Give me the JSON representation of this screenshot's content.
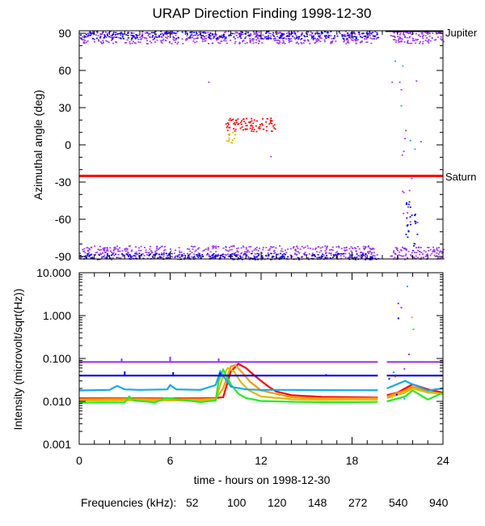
{
  "title": "URAP Direction Finding  1998-12-30",
  "chart_data": [
    {
      "type": "scatter",
      "panel": "azimuth",
      "ylabel": "Azimuthal angle (deg)",
      "xlim": [
        0,
        24
      ],
      "ylim": [
        -92,
        92
      ],
      "yticks": [
        90,
        60,
        30,
        0,
        -30,
        -60,
        -90
      ],
      "yticklabels": [
        "90",
        "60",
        "30",
        "0",
        "-30",
        "-60",
        "-90"
      ],
      "reference_lines": [
        {
          "label": "Jupiter",
          "y": 91.5,
          "x_range": [
            20.2,
            24
          ],
          "color": "#000000"
        },
        {
          "label": "Saturn",
          "y": -25,
          "x_range": [
            0,
            24
          ],
          "color": "#ff0000"
        }
      ],
      "clusters": [
        {
          "freq": "940",
          "x_range": [
            0,
            19.7
          ],
          "y_range": [
            82,
            92
          ],
          "count": 520
        },
        {
          "freq": "540",
          "x_range": [
            0,
            19.7
          ],
          "y_range": [
            86,
            92
          ],
          "count": 260
        },
        {
          "freq": "940",
          "x_range": [
            0,
            19.7
          ],
          "y_range": [
            -92,
            -81
          ],
          "count": 520
        },
        {
          "freq": "540",
          "x_range": [
            0,
            19.7
          ],
          "y_range": [
            -92,
            -87
          ],
          "count": 260
        },
        {
          "freq": "940",
          "x_range": [
            20.5,
            24
          ],
          "y_range": [
            82,
            92
          ],
          "count": 110
        },
        {
          "freq": "940",
          "x_range": [
            20.5,
            24
          ],
          "y_range": [
            -92,
            -82
          ],
          "count": 110
        },
        {
          "freq": "52",
          "x_range": [
            9.6,
            12.9
          ],
          "y_range": [
            11,
            22
          ],
          "count": 90
        },
        {
          "freq": "120",
          "x_range": [
            9.6,
            10.3
          ],
          "y_range": [
            2,
            12
          ],
          "count": 14
        },
        {
          "freq": "540",
          "x_range": [
            21.5,
            22.3
          ],
          "y_range": [
            -90,
            -40
          ],
          "count": 25
        },
        {
          "freq": "940",
          "x_range": [
            21.2,
            22.4
          ],
          "y_range": [
            -70,
            10
          ],
          "count": 12
        }
      ],
      "scattered_points": [
        {
          "freq": "940",
          "x": 8.5,
          "y": 51
        },
        {
          "freq": "940",
          "x": 12.6,
          "y": -9
        },
        {
          "freq": "940",
          "x": 20.6,
          "y": 51
        },
        {
          "freq": "940",
          "x": 21.1,
          "y": 51
        },
        {
          "freq": "940",
          "x": 21.2,
          "y": 45
        },
        {
          "freq": "272",
          "x": 20.8,
          "y": 68
        },
        {
          "freq": "272",
          "x": 21.3,
          "y": 64
        },
        {
          "freq": "272",
          "x": 21.2,
          "y": 32
        },
        {
          "freq": "272",
          "x": 21.8,
          "y": 4
        },
        {
          "freq": "272",
          "x": 22.1,
          "y": -3
        },
        {
          "freq": "940",
          "x": 21.5,
          "y": 12
        },
        {
          "freq": "940",
          "x": 22.2,
          "y": 52
        },
        {
          "freq": "940",
          "x": 22.5,
          "y": 3
        }
      ]
    },
    {
      "type": "line",
      "panel": "intensity",
      "ylabel": "Intensity (microvolt/sqrt(Hz))",
      "xlabel": "time - hours on 1998-12-30",
      "xlim": [
        0,
        24
      ],
      "xticks": [
        0,
        6,
        12,
        18,
        24
      ],
      "xticklabels": [
        "0",
        "6",
        "12",
        "18",
        "24"
      ],
      "ylim": [
        0.001,
        10
      ],
      "yscale": "log",
      "yticks": [
        10,
        1,
        0.1,
        0.01,
        0.001
      ],
      "yticklabels": [
        "10.000",
        "1.000",
        "0.100",
        "0.010",
        "0.001"
      ],
      "gap": [
        19.7,
        20.3
      ],
      "series": [
        {
          "freq": "52",
          "x": [
            0,
            2,
            4,
            6,
            8,
            9,
            9.5,
            10,
            10.5,
            11,
            11.5,
            12,
            12.5,
            13,
            14,
            16,
            18,
            19.7,
            20.3,
            21,
            21.5,
            22,
            23,
            24
          ],
          "y": [
            0.0118,
            0.0118,
            0.0118,
            0.0117,
            0.0118,
            0.012,
            0.0125,
            0.05,
            0.075,
            0.06,
            0.042,
            0.03,
            0.022,
            0.017,
            0.014,
            0.0127,
            0.0125,
            0.0122,
            0.014,
            0.016,
            0.02,
            0.025,
            0.019,
            0.016
          ]
        },
        {
          "freq": "100",
          "x": [
            0,
            3,
            6,
            8,
            9,
            9.5,
            10,
            10.3,
            10.8,
            11.3,
            12,
            14,
            16,
            18,
            19.7,
            20.3,
            21.5,
            22,
            23,
            24
          ],
          "y": [
            0.0112,
            0.0114,
            0.0112,
            0.0112,
            0.0116,
            0.02,
            0.065,
            0.07,
            0.045,
            0.028,
            0.018,
            0.0125,
            0.0118,
            0.0118,
            0.0118,
            0.013,
            0.018,
            0.022,
            0.017,
            0.015
          ]
        },
        {
          "freq": "120",
          "x": [
            0,
            3,
            6,
            8,
            9,
            9.5,
            9.8,
            10.2,
            10.7,
            11.2,
            12,
            14,
            16,
            18,
            19.7,
            20.3,
            21.5,
            22,
            23,
            24
          ],
          "y": [
            0.0105,
            0.0106,
            0.0105,
            0.0106,
            0.0112,
            0.04,
            0.06,
            0.05,
            0.027,
            0.018,
            0.013,
            0.0112,
            0.0109,
            0.011,
            0.011,
            0.012,
            0.016,
            0.02,
            0.016,
            0.015
          ]
        },
        {
          "freq": "148",
          "x": [
            0,
            1.5,
            3,
            3.3,
            3.6,
            5,
            5.7,
            8,
            9,
            9.2,
            9.5,
            10,
            10.5,
            11,
            12,
            14,
            16,
            18,
            19.7,
            20.3,
            21.5,
            22,
            23,
            24
          ],
          "y": [
            0.0093,
            0.0094,
            0.0095,
            0.013,
            0.0105,
            0.0095,
            0.012,
            0.0096,
            0.0105,
            0.03,
            0.055,
            0.025,
            0.015,
            0.012,
            0.0102,
            0.0098,
            0.0096,
            0.0096,
            0.0097,
            0.01,
            0.013,
            0.018,
            0.011,
            0.016
          ]
        },
        {
          "freq": "272",
          "x": [
            0,
            2,
            2.5,
            3,
            4,
            5.8,
            6,
            6.4,
            8,
            9,
            9.3,
            10,
            11,
            12,
            14,
            16,
            18,
            19.7,
            20.3,
            21.5,
            22,
            23,
            24
          ],
          "y": [
            0.018,
            0.0185,
            0.023,
            0.019,
            0.0185,
            0.019,
            0.024,
            0.019,
            0.0185,
            0.024,
            0.05,
            0.022,
            0.019,
            0.0185,
            0.0185,
            0.0183,
            0.0182,
            0.0182,
            0.02,
            0.03,
            0.025,
            0.018,
            0.02
          ]
        },
        {
          "freq": "540",
          "x": [
            0,
            19.7,
            20.3,
            24
          ],
          "y": [
            0.04,
            0.04,
            0.04,
            0.04
          ]
        },
        {
          "freq": "940",
          "x": [
            0,
            19.7,
            20.3,
            24
          ],
          "y": [
            0.083,
            0.083,
            0.083,
            0.083
          ]
        }
      ],
      "scattered_points": [
        {
          "freq": "272",
          "x": 21.6,
          "y": 5.0
        },
        {
          "freq": "940",
          "x": 21.0,
          "y": 2.0
        },
        {
          "freq": "940",
          "x": 21.2,
          "y": 1.6
        },
        {
          "freq": "540",
          "x": 21.0,
          "y": 0.9
        },
        {
          "freq": "148",
          "x": 22.0,
          "y": 0.5
        },
        {
          "freq": "120",
          "x": 21.9,
          "y": 0.95
        },
        {
          "freq": "940",
          "x": 21.7,
          "y": 0.13
        },
        {
          "freq": "52",
          "x": 20.8,
          "y": 0.04
        },
        {
          "freq": "272",
          "x": 20.7,
          "y": 0.05
        },
        {
          "freq": "540",
          "x": 20.4,
          "y": 0.035
        },
        {
          "freq": "940",
          "x": 21.4,
          "y": 0.06
        },
        {
          "freq": "272",
          "x": 21.4,
          "y": 0.012
        },
        {
          "freq": "540",
          "x": 20.9,
          "y": 0.015
        },
        {
          "freq": "120",
          "x": 20.6,
          "y": 0.013
        }
      ],
      "spikes": [
        {
          "freq": "940",
          "x": 2.8,
          "y": 0.1
        },
        {
          "freq": "940",
          "x": 6.0,
          "y": 0.11
        },
        {
          "freq": "940",
          "x": 9.2,
          "y": 0.1
        },
        {
          "freq": "540",
          "x": 3.0,
          "y": 0.05
        },
        {
          "freq": "540",
          "x": 6.2,
          "y": 0.048
        },
        {
          "freq": "540",
          "x": 9.3,
          "y": 0.047
        },
        {
          "freq": "540",
          "x": 16.3,
          "y": 0.043
        }
      ]
    }
  ],
  "legend": {
    "label": "Frequencies (kHz):",
    "items": [
      {
        "freq": "52",
        "text": "52",
        "color": "#ff0000"
      },
      {
        "freq": "100",
        "text": "100",
        "color": "#ff9900"
      },
      {
        "freq": "120",
        "text": "120",
        "color": "#ddbb00"
      },
      {
        "freq": "148",
        "text": "148",
        "color": "#22ee22"
      },
      {
        "freq": "272",
        "text": "272",
        "color": "#11aaee"
      },
      {
        "freq": "540",
        "text": "540",
        "color": "#0000ee"
      },
      {
        "freq": "940",
        "text": "940",
        "color": "#9933ff"
      }
    ]
  }
}
